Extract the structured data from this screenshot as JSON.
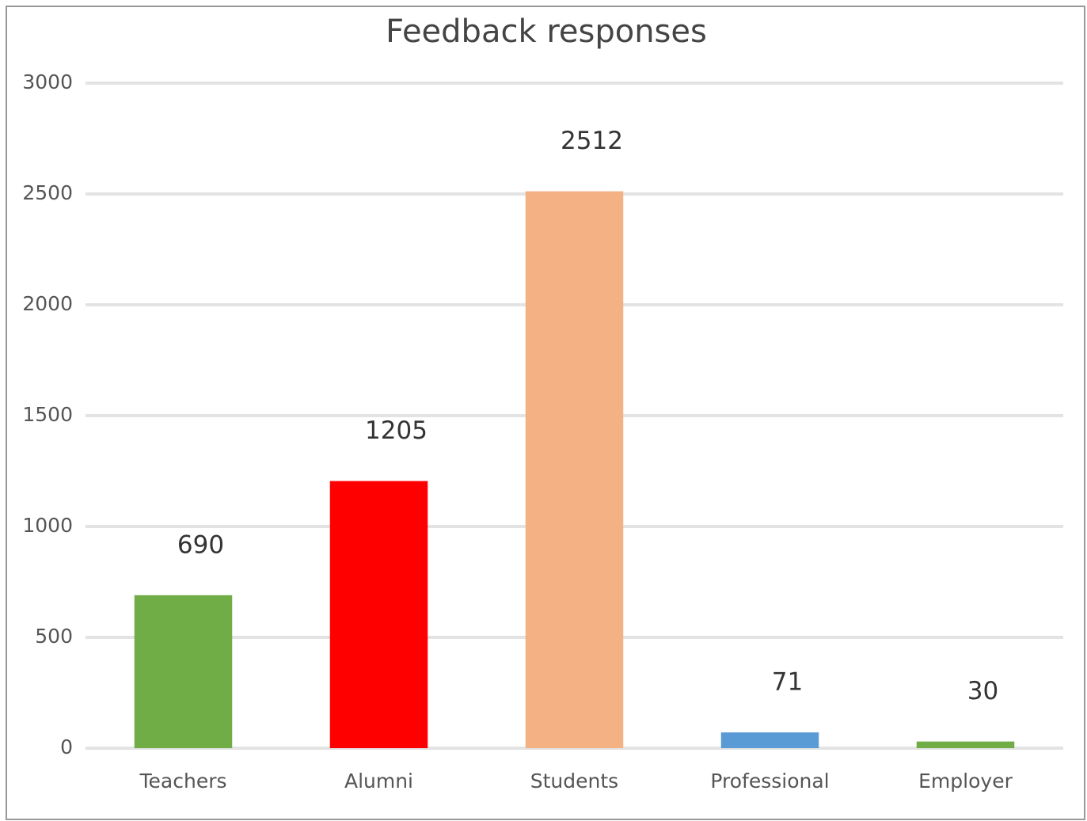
{
  "chart_data": {
    "type": "bar",
    "title": "Feedback responses",
    "categories": [
      "Teachers",
      "Alumni",
      "Students",
      "Professional",
      "Employer"
    ],
    "values": [
      690,
      1205,
      2512,
      71,
      30
    ],
    "colors": [
      "#70ad47",
      "#ff0000",
      "#f4b183",
      "#5b9bd5",
      "#70ad47"
    ],
    "ylim": [
      0,
      3000
    ],
    "yticks": [
      0,
      500,
      1000,
      1500,
      2000,
      2500,
      3000
    ],
    "grid": true
  }
}
